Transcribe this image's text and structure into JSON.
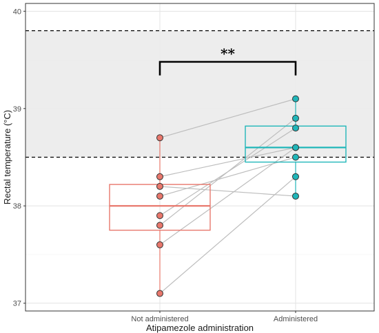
{
  "chart_data": {
    "type": "box",
    "xlabel": "Atipamezole administration",
    "ylabel": "Rectal temperature (°C)",
    "categories": [
      "Not administered",
      "Administered"
    ],
    "ylim": [
      36.92,
      40.08
    ],
    "yticks": [
      37,
      38,
      39,
      40
    ],
    "grid": true,
    "reference_band": {
      "lower": 38.5,
      "upper": 39.8,
      "fill": "#ebebeb",
      "line_style": "dashed"
    },
    "colors": {
      "not_administered": "#e8776c",
      "administered": "#20b6b9"
    },
    "boxes": [
      {
        "category": "Not administered",
        "q1": 37.75,
        "median": 38.0,
        "q3": 38.22,
        "whisker_low": 37.1,
        "whisker_high": 38.7
      },
      {
        "category": "Administered",
        "q1": 38.45,
        "median": 38.6,
        "q3": 38.82,
        "whisker_low": 38.1,
        "whisker_high": 39.1
      }
    ],
    "paired_points": [
      {
        "not_administered": 38.7,
        "administered": 39.1
      },
      {
        "not_administered": 38.3,
        "administered": 38.6
      },
      {
        "not_administered": 38.2,
        "administered": 38.1
      },
      {
        "not_administered": 38.1,
        "administered": 38.5
      },
      {
        "not_administered": 37.9,
        "administered": 38.8
      },
      {
        "not_administered": 37.8,
        "administered": 38.9
      },
      {
        "not_administered": 37.6,
        "administered": 38.6
      },
      {
        "not_administered": 37.1,
        "administered": 38.3
      }
    ],
    "significance": {
      "label": "**",
      "y": 39.48
    }
  }
}
